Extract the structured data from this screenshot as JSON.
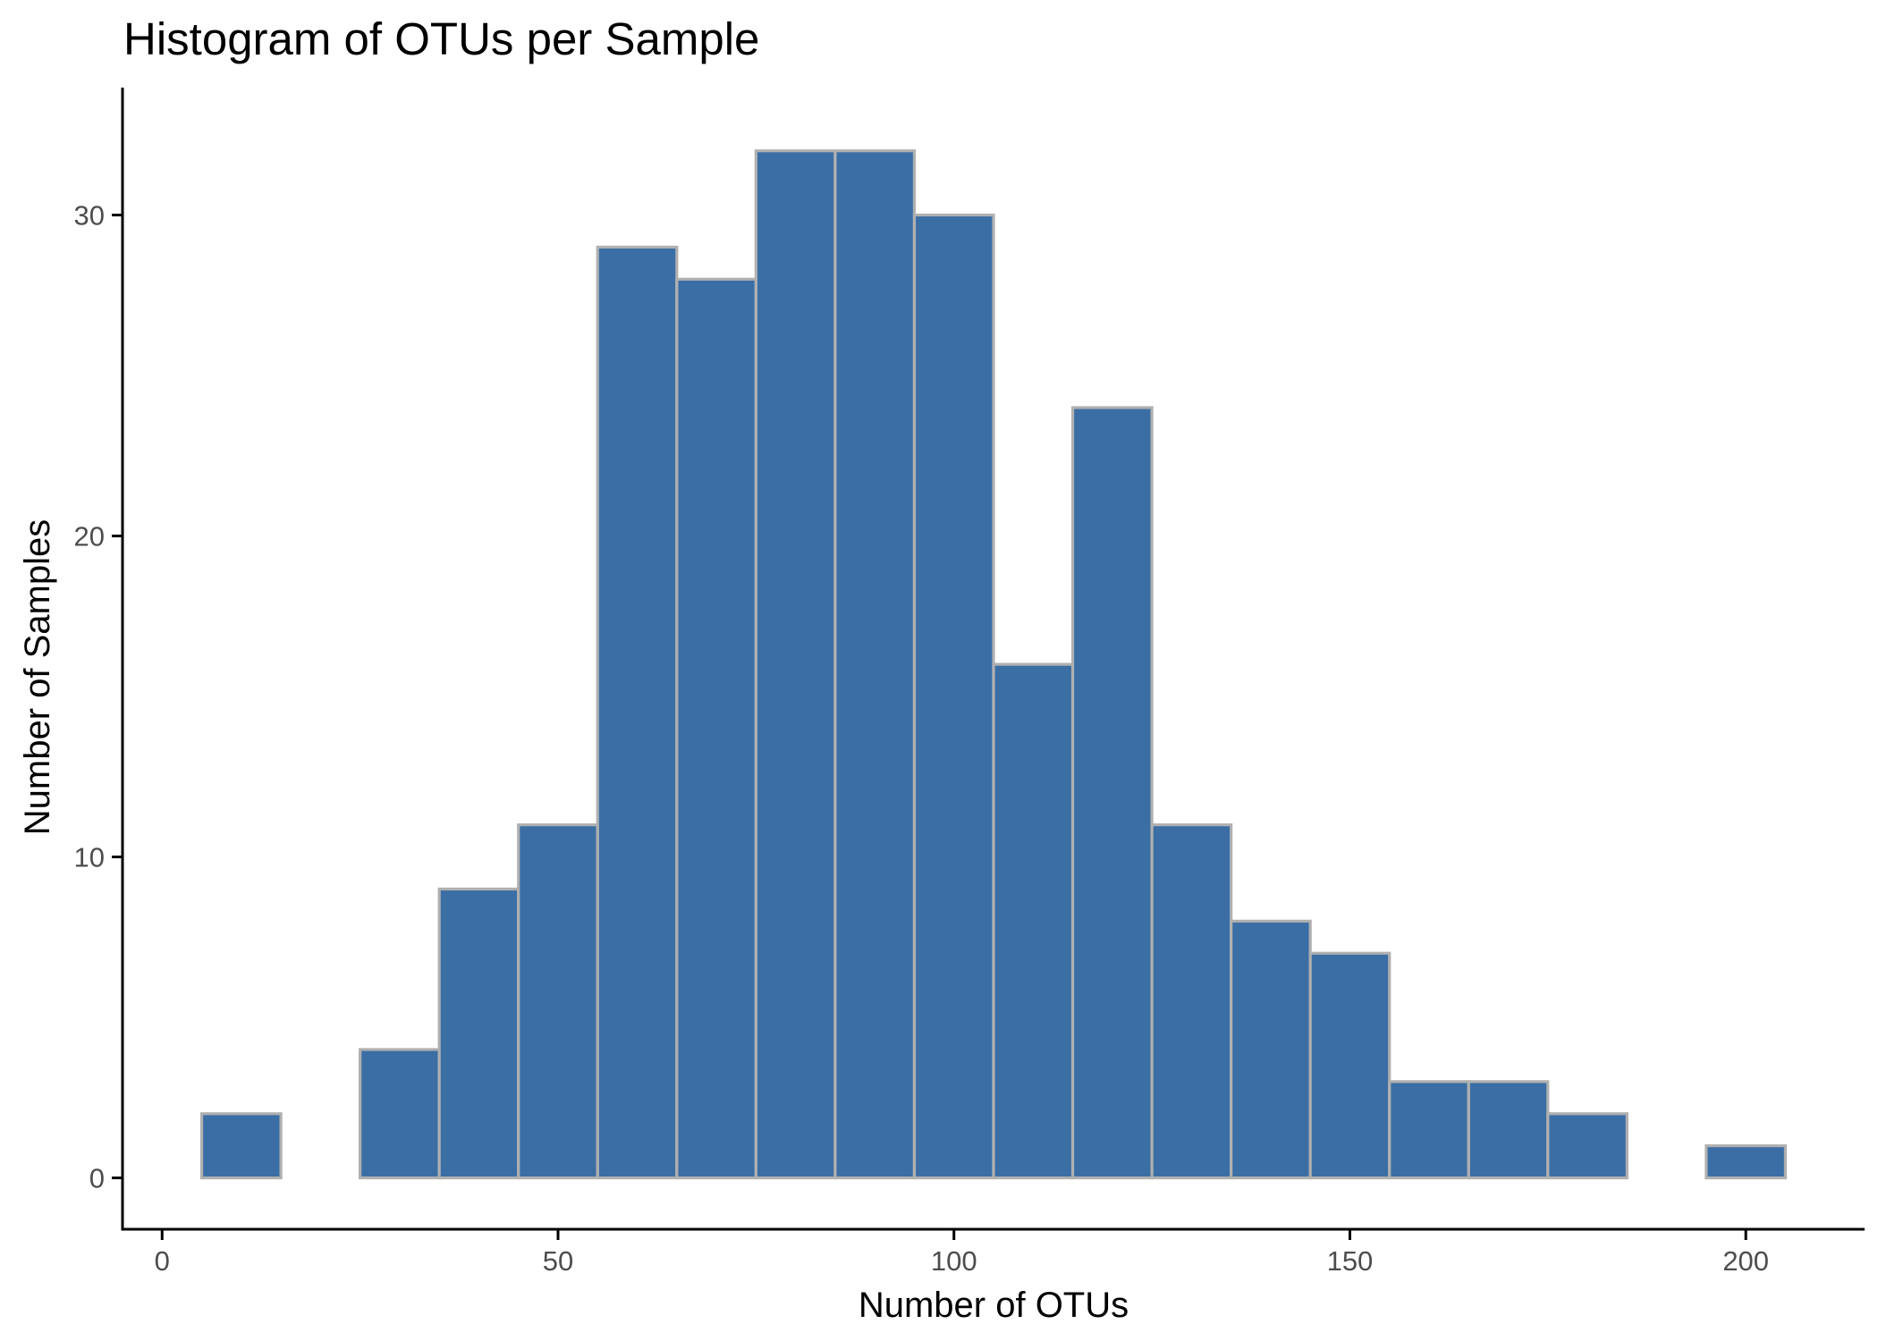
{
  "chart_data": {
    "type": "bar",
    "title": "Histogram of OTUs per Sample",
    "xlabel": "Number of OTUs",
    "ylabel": "Number of Samples",
    "bin_width": 10,
    "bins": [
      {
        "x_start": 5,
        "x_end": 15,
        "count": 2
      },
      {
        "x_start": 15,
        "x_end": 25,
        "count": 0
      },
      {
        "x_start": 25,
        "x_end": 35,
        "count": 4
      },
      {
        "x_start": 35,
        "x_end": 45,
        "count": 9
      },
      {
        "x_start": 45,
        "x_end": 55,
        "count": 11
      },
      {
        "x_start": 55,
        "x_end": 65,
        "count": 29
      },
      {
        "x_start": 65,
        "x_end": 75,
        "count": 28
      },
      {
        "x_start": 75,
        "x_end": 85,
        "count": 32
      },
      {
        "x_start": 85,
        "x_end": 95,
        "count": 32
      },
      {
        "x_start": 95,
        "x_end": 105,
        "count": 30
      },
      {
        "x_start": 105,
        "x_end": 115,
        "count": 16
      },
      {
        "x_start": 115,
        "x_end": 125,
        "count": 24
      },
      {
        "x_start": 125,
        "x_end": 135,
        "count": 11
      },
      {
        "x_start": 135,
        "x_end": 145,
        "count": 8
      },
      {
        "x_start": 145,
        "x_end": 155,
        "count": 7
      },
      {
        "x_start": 155,
        "x_end": 165,
        "count": 3
      },
      {
        "x_start": 165,
        "x_end": 175,
        "count": 3
      },
      {
        "x_start": 175,
        "x_end": 185,
        "count": 2
      },
      {
        "x_start": 185,
        "x_end": 195,
        "count": 0
      },
      {
        "x_start": 195,
        "x_end": 205,
        "count": 1
      }
    ],
    "xlim": [
      -5,
      215
    ],
    "ylim": [
      -1.6,
      32.8
    ],
    "x_ticks": [
      0,
      50,
      100,
      150,
      200
    ],
    "y_ticks": [
      0,
      10,
      20,
      30
    ],
    "grid": false,
    "legend": "none",
    "colors": {
      "bar_fill": "#3a6ea5",
      "bar_outline": "#b0b0b0",
      "axis": "#000000",
      "tick_label": "#4d4d4d"
    }
  }
}
